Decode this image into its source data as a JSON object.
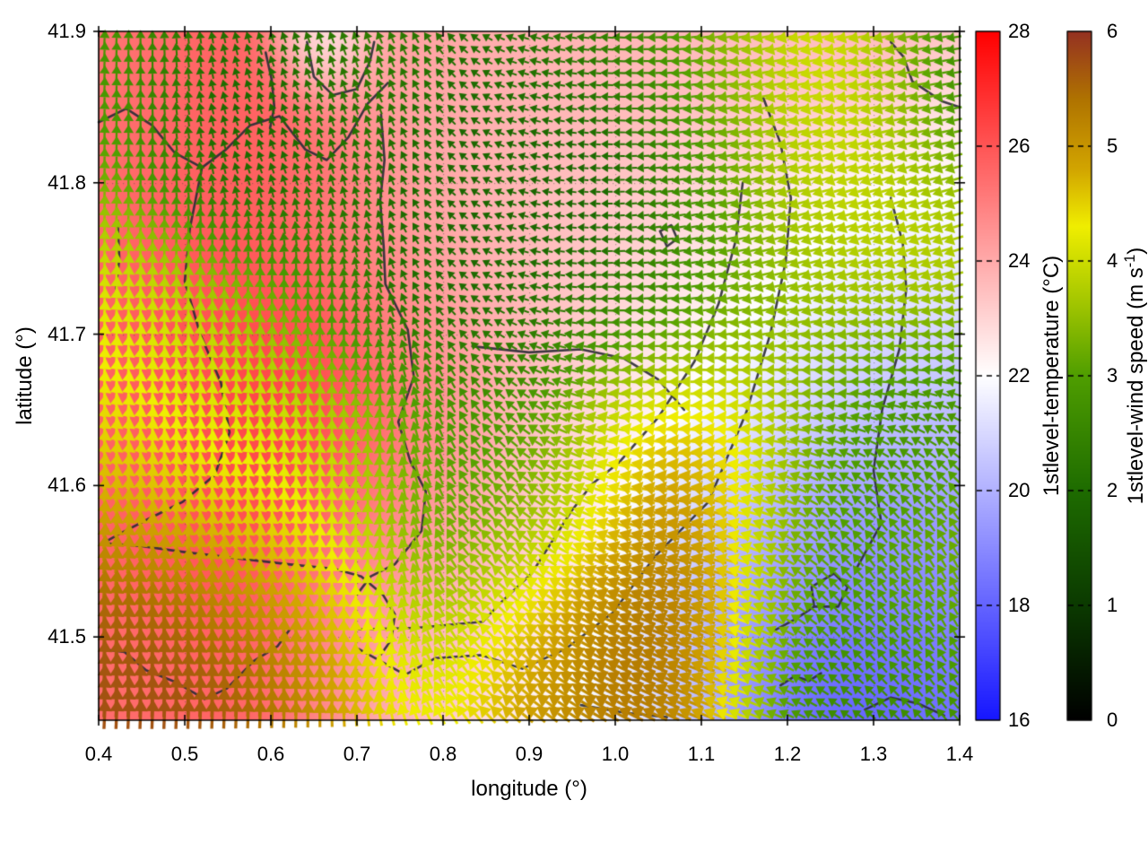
{
  "axes": {
    "x": {
      "label": "longitude (°)",
      "min": 0.4,
      "max": 1.4,
      "tick_values": [
        0.4,
        0.5,
        0.6,
        0.7,
        0.8,
        0.9,
        1.0,
        1.1,
        1.2,
        1.3,
        1.4
      ],
      "tick_labels": [
        "0.4",
        "0.5",
        "0.6",
        "0.7",
        "0.8",
        "0.9",
        "1.0",
        "1.1",
        "1.2",
        "1.3",
        "1.4"
      ]
    },
    "y": {
      "label": "latitude (°)",
      "min": 41.445,
      "max": 41.9,
      "tick_values": [
        41.5,
        41.6,
        41.7,
        41.8,
        41.9
      ],
      "tick_labels": [
        "41.5",
        "41.6",
        "41.7",
        "41.8",
        "41.9"
      ]
    }
  },
  "colorbars": {
    "temperature": {
      "label_main": "1stlevel-temperature (°C)",
      "label_sup": "",
      "label_end": "",
      "min": 16,
      "max": 28,
      "tick_values": [
        16,
        18,
        20,
        22,
        24,
        26,
        28
      ],
      "tick_labels": [
        "16",
        "18",
        "20",
        "22",
        "24",
        "26",
        "28"
      ],
      "interior_ticks": [
        18,
        20,
        22,
        24,
        26
      ],
      "stops": [
        [
          16,
          "#1616ff"
        ],
        [
          22,
          "#ffffff"
        ],
        [
          28,
          "#ff0000"
        ]
      ]
    },
    "wind": {
      "label_main": "1stlevel-wind speed (m s",
      "label_sup": "-1",
      "label_end": ")",
      "min": 0,
      "max": 6,
      "tick_values": [
        0,
        1,
        2,
        3,
        4,
        5,
        6
      ],
      "tick_labels": [
        "0",
        "1",
        "2",
        "3",
        "4",
        "5",
        "6"
      ],
      "interior_ticks": [
        1,
        2,
        3,
        4,
        5
      ],
      "stops": [
        [
          0,
          "#000000"
        ],
        [
          1,
          "#0b3a00"
        ],
        [
          2,
          "#1e6c00"
        ],
        [
          3,
          "#4f9e00"
        ],
        [
          3.6,
          "#9ec400"
        ],
        [
          4.3,
          "#f0ee00"
        ],
        [
          4.8,
          "#d2a500"
        ],
        [
          5.4,
          "#b07400"
        ],
        [
          6,
          "#953122"
        ]
      ]
    }
  },
  "chart_data": {
    "type": "heatmap",
    "title": "",
    "xlabel": "longitude (°)",
    "ylabel": "latitude (°)",
    "xlim": [
      0.4,
      1.4
    ],
    "ylim": [
      41.445,
      41.9
    ],
    "description": "Map of 1st-level temperature (blue-white-red shading, 16-28 °C) overlaid with a regular grid of wind vectors colored and scaled by 1st-level wind speed (0-6 m/s, black-green-yellow-orange-brown) and dark meandering contour/boundary lines.",
    "interp": {
      "temp_sigma": 0.075,
      "wind_sigma": 0.08,
      "lat_aspect": 1.5
    },
    "vector_grid": {
      "cols": 72,
      "rows": 58
    },
    "arrow": {
      "len_base": 2,
      "len_per_speed": 5.4
    },
    "graticule_color": "rgba(70,70,70,0.45)",
    "contour_color": "#2d2d38",
    "temperature_points": [
      [
        0.42,
        41.88,
        25.2
      ],
      [
        0.55,
        41.86,
        25.8
      ],
      [
        0.66,
        41.895,
        21.5,
        0.035
      ],
      [
        0.76,
        41.885,
        24.2
      ],
      [
        0.9,
        41.87,
        23.8
      ],
      [
        1.05,
        41.87,
        23.7
      ],
      [
        1.2,
        41.87,
        23.5
      ],
      [
        1.33,
        41.885,
        23.8
      ],
      [
        1.4,
        41.82,
        22.2
      ],
      [
        0.44,
        41.79,
        25.4
      ],
      [
        0.56,
        41.78,
        26.0
      ],
      [
        0.68,
        41.78,
        25.0
      ],
      [
        0.82,
        41.78,
        23.8
      ],
      [
        0.97,
        41.78,
        23.4
      ],
      [
        1.12,
        41.77,
        22.6
      ],
      [
        1.26,
        41.77,
        21.9
      ],
      [
        1.36,
        41.75,
        21.5
      ],
      [
        0.42,
        41.68,
        25.6
      ],
      [
        0.54,
        41.7,
        26.3
      ],
      [
        0.66,
        41.66,
        26.6
      ],
      [
        0.78,
        41.68,
        24.6
      ],
      [
        0.9,
        41.68,
        23.5
      ],
      [
        1.03,
        41.67,
        22.6
      ],
      [
        1.16,
        41.66,
        21.6
      ],
      [
        1.3,
        41.66,
        20.6
      ],
      [
        1.4,
        41.66,
        20.4
      ],
      [
        0.44,
        41.58,
        25.6
      ],
      [
        0.57,
        41.58,
        26.4
      ],
      [
        0.7,
        41.57,
        25.4
      ],
      [
        0.82,
        41.58,
        24.4
      ],
      [
        0.94,
        41.57,
        22.8
      ],
      [
        1.06,
        41.57,
        21.2
      ],
      [
        1.18,
        41.56,
        19.6
      ],
      [
        1.3,
        41.56,
        18.9
      ],
      [
        1.4,
        41.56,
        19.4
      ],
      [
        0.44,
        41.48,
        25.4
      ],
      [
        0.58,
        41.47,
        25.8
      ],
      [
        0.7,
        41.48,
        24.6
      ],
      [
        0.8,
        41.46,
        22.9
      ],
      [
        0.92,
        41.47,
        22.3
      ],
      [
        1.02,
        41.46,
        21.0
      ],
      [
        1.14,
        41.47,
        19.0
      ],
      [
        1.26,
        41.46,
        17.7,
        0.06
      ],
      [
        1.36,
        41.47,
        18.3
      ],
      [
        0.88,
        41.52,
        23.0
      ],
      [
        0.76,
        41.52,
        24.0
      ],
      [
        0.98,
        41.445,
        21.8
      ]
    ],
    "wind_points": [
      [
        0.42,
        41.885,
        0.4,
        3.0
      ],
      [
        0.5,
        41.885,
        0.0,
        2.6
      ],
      [
        0.62,
        41.885,
        -0.6,
        2.4
      ],
      [
        0.75,
        41.885,
        -0.8,
        2.6
      ],
      [
        0.88,
        41.88,
        -2.3,
        0.4
      ],
      [
        1.0,
        41.87,
        -2.5,
        0.3
      ],
      [
        1.13,
        41.875,
        -3.6,
        -0.6
      ],
      [
        1.27,
        41.87,
        -4.4,
        -0.9
      ],
      [
        1.4,
        41.87,
        -2.2,
        -0.2
      ],
      [
        0.44,
        41.82,
        0.2,
        3.6
      ],
      [
        0.55,
        41.845,
        -0.9,
        0.3
      ],
      [
        0.63,
        41.83,
        -1.6,
        1.6
      ],
      [
        0.72,
        41.81,
        0.2,
        2.4
      ],
      [
        0.84,
        41.8,
        -2.2,
        0.6
      ],
      [
        0.97,
        41.8,
        -0.9,
        0.1
      ],
      [
        1.1,
        41.8,
        -3.0,
        -0.6
      ],
      [
        1.24,
        41.79,
        -3.8,
        -1.2
      ],
      [
        1.36,
        41.76,
        -3.8,
        -1.4
      ],
      [
        0.42,
        41.72,
        0.3,
        4.3
      ],
      [
        0.53,
        41.7,
        0.4,
        3.9
      ],
      [
        0.65,
        41.73,
        0.4,
        3.1
      ],
      [
        0.78,
        41.74,
        -1.4,
        1.5
      ],
      [
        0.92,
        41.73,
        -2.4,
        0.1
      ],
      [
        1.06,
        41.72,
        -2.6,
        -0.4
      ],
      [
        1.2,
        41.71,
        -3.3,
        -1.0
      ],
      [
        1.33,
        41.69,
        -3.5,
        -1.3
      ],
      [
        0.42,
        41.61,
        0.5,
        4.6
      ],
      [
        0.55,
        41.62,
        0.5,
        4.2
      ],
      [
        0.68,
        41.62,
        0.2,
        4.0
      ],
      [
        0.81,
        41.63,
        -0.9,
        3.0
      ],
      [
        0.9,
        41.6,
        -3.0,
        1.6
      ],
      [
        1.02,
        41.62,
        -4.8,
        0.7
      ],
      [
        1.14,
        41.62,
        -5.3,
        0.6
      ],
      [
        1.26,
        41.62,
        -3.2,
        0.7
      ],
      [
        1.36,
        41.64,
        -3.0,
        0.8
      ],
      [
        1.4,
        41.6,
        -1.6,
        3.6
      ],
      [
        0.6,
        41.56,
        0.7,
        4.6
      ],
      [
        0.73,
        41.56,
        0.1,
        3.7
      ],
      [
        0.85,
        41.555,
        -2.8,
        2.0
      ],
      [
        1.25,
        41.56,
        -2.0,
        2.2
      ],
      [
        1.33,
        41.57,
        -1.2,
        3.0
      ],
      [
        0.42,
        41.5,
        0.3,
        5.7
      ],
      [
        0.54,
        41.48,
        0.1,
        5.8
      ],
      [
        0.66,
        41.5,
        0.3,
        5.2
      ],
      [
        0.78,
        41.47,
        -0.8,
        4.4
      ],
      [
        0.88,
        41.49,
        -4.4,
        2.9
      ],
      [
        1.0,
        41.5,
        -5.3,
        1.9
      ],
      [
        1.12,
        41.52,
        -5.6,
        1.1
      ],
      [
        1.05,
        41.45,
        -4.9,
        2.5
      ],
      [
        0.93,
        41.445,
        -3.8,
        3.2
      ],
      [
        1.22,
        41.47,
        -2.3,
        0.5
      ],
      [
        1.28,
        41.445,
        -2.4,
        1.0
      ],
      [
        1.31,
        41.52,
        -0.7,
        3.9
      ],
      [
        1.38,
        41.48,
        -1.8,
        2.2
      ]
    ],
    "contours": [
      [
        [
          0.4,
          41.84
        ],
        [
          0.432,
          41.849
        ],
        [
          0.462,
          41.838
        ],
        [
          0.488,
          41.82
        ],
        [
          0.52,
          41.81
        ],
        [
          0.548,
          41.822
        ],
        [
          0.576,
          41.838
        ],
        [
          0.61,
          41.844
        ],
        [
          0.64,
          41.822
        ],
        [
          0.665,
          41.815
        ],
        [
          0.69,
          41.83
        ],
        [
          0.712,
          41.852
        ],
        [
          0.736,
          41.866
        ]
      ],
      [
        [
          0.52,
          41.81
        ],
        [
          0.506,
          41.77
        ],
        [
          0.5,
          41.735
        ],
        [
          0.518,
          41.7
        ],
        [
          0.542,
          41.668
        ],
        [
          0.552,
          41.635
        ],
        [
          0.535,
          41.607
        ],
        [
          0.497,
          41.589
        ],
        [
          0.458,
          41.578
        ],
        [
          0.424,
          41.568
        ],
        [
          0.405,
          41.562
        ]
      ],
      [
        [
          0.642,
          41.893
        ],
        [
          0.65,
          41.87
        ],
        [
          0.672,
          41.858
        ],
        [
          0.7,
          41.862
        ],
        [
          0.715,
          41.88
        ],
        [
          0.72,
          41.893
        ]
      ],
      [
        [
          0.728,
          41.845
        ],
        [
          0.732,
          41.815
        ],
        [
          0.727,
          41.788
        ],
        [
          0.731,
          41.758
        ],
        [
          0.733,
          41.733
        ],
        [
          0.759,
          41.703
        ],
        [
          0.766,
          41.672
        ],
        [
          0.748,
          41.642
        ],
        [
          0.762,
          41.616
        ],
        [
          0.78,
          41.596
        ],
        [
          0.775,
          41.57
        ],
        [
          0.744,
          41.548
        ],
        [
          0.716,
          41.54
        ],
        [
          0.7,
          41.528
        ]
      ],
      [
        [
          0.702,
          41.492
        ],
        [
          0.756,
          41.475
        ],
        [
          0.791,
          41.486
        ],
        [
          0.845,
          41.488
        ],
        [
          0.892,
          41.479
        ],
        [
          0.942,
          41.492
        ],
        [
          0.997,
          41.516
        ],
        [
          1.046,
          41.553
        ],
        [
          1.108,
          41.589
        ],
        [
          1.152,
          41.648
        ],
        [
          1.18,
          41.7
        ],
        [
          1.198,
          41.748
        ],
        [
          1.204,
          41.79
        ],
        [
          1.192,
          41.826
        ],
        [
          1.172,
          41.856
        ]
      ],
      [
        [
          0.702,
          41.505
        ],
        [
          0.77,
          41.506
        ],
        [
          0.846,
          41.51
        ],
        [
          0.866,
          41.522
        ],
        [
          0.903,
          41.542
        ],
        [
          0.949,
          41.583
        ],
        [
          0.973,
          41.601
        ],
        [
          1.004,
          41.615
        ],
        [
          1.05,
          41.645
        ],
        [
          1.092,
          41.682
        ],
        [
          1.12,
          41.72
        ],
        [
          1.14,
          41.762
        ],
        [
          1.148,
          41.8
        ]
      ],
      [
        [
          1.28,
          41.545
        ],
        [
          1.309,
          41.575
        ],
        [
          1.3,
          41.61
        ],
        [
          1.31,
          41.65
        ],
        [
          1.33,
          41.69
        ],
        [
          1.338,
          41.73
        ],
        [
          1.334,
          41.76
        ],
        [
          1.32,
          41.79
        ]
      ],
      [
        [
          0.405,
          41.562
        ],
        [
          0.45,
          41.56
        ],
        [
          0.5,
          41.556
        ],
        [
          0.56,
          41.552
        ],
        [
          0.62,
          41.548
        ],
        [
          0.674,
          41.545
        ],
        [
          0.705,
          41.54
        ],
        [
          0.73,
          41.528
        ],
        [
          0.744,
          41.515
        ],
        [
          0.74,
          41.498
        ],
        [
          0.726,
          41.487
        ]
      ],
      [
        [
          0.403,
          41.492
        ],
        [
          0.43,
          41.49
        ],
        [
          0.455,
          41.478
        ],
        [
          0.49,
          41.47
        ],
        [
          0.523,
          41.459
        ],
        [
          0.549,
          41.466
        ],
        [
          0.58,
          41.484
        ],
        [
          0.608,
          41.494
        ],
        [
          0.622,
          41.505
        ]
      ],
      [
        [
          1.184,
          41.504
        ],
        [
          1.21,
          41.512
        ],
        [
          1.231,
          41.52
        ],
        [
          1.228,
          41.533
        ],
        [
          1.254,
          41.542
        ],
        [
          1.27,
          41.533
        ],
        [
          1.259,
          41.52
        ],
        [
          1.231,
          41.52
        ]
      ],
      [
        [
          1.192,
          41.468
        ],
        [
          1.208,
          41.474
        ],
        [
          1.225,
          41.471
        ],
        [
          1.239,
          41.476
        ]
      ],
      [
        [
          1.32,
          41.893
        ],
        [
          1.335,
          41.883
        ],
        [
          1.345,
          41.867
        ],
        [
          1.379,
          41.854
        ],
        [
          1.4,
          41.85
        ]
      ],
      [
        [
          1.29,
          41.452
        ],
        [
          1.32,
          41.46
        ],
        [
          1.352,
          41.456
        ],
        [
          1.382,
          41.448
        ]
      ],
      [
        [
          0.422,
          41.775
        ],
        [
          0.424,
          41.75
        ],
        [
          0.42,
          41.73
        ]
      ],
      [
        [
          0.834,
          41.692
        ],
        [
          0.9,
          41.688
        ],
        [
          0.96,
          41.69
        ],
        [
          1.01,
          41.684
        ],
        [
          1.05,
          41.67
        ],
        [
          1.08,
          41.65
        ]
      ],
      [
        [
          0.594,
          41.886
        ],
        [
          0.601,
          41.868
        ],
        [
          0.604,
          41.85
        ],
        [
          0.599,
          41.836
        ]
      ],
      [
        [
          1.052,
          41.768
        ],
        [
          1.065,
          41.772
        ],
        [
          1.072,
          41.763
        ],
        [
          1.06,
          41.758
        ],
        [
          1.052,
          41.768
        ]
      ],
      [
        [
          0.96,
          41.455
        ],
        [
          1.01,
          41.45
        ],
        [
          1.06,
          41.447
        ]
      ]
    ]
  }
}
